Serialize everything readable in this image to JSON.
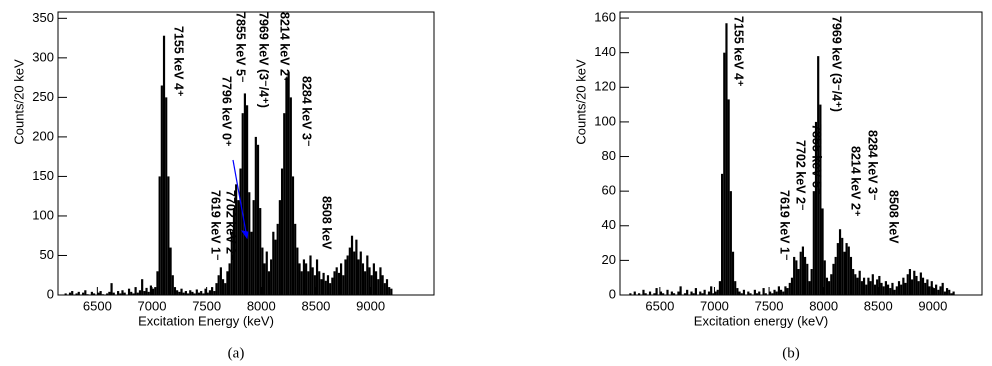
{
  "chart_data": [
    {
      "type": "histogram",
      "caption": "(a)",
      "xlabel": "Excitation Energy (keV)",
      "ylabel": "Counts/20 keV",
      "color": "#000000",
      "xlim": [
        6140,
        9580
      ],
      "ylim": [
        0,
        358
      ],
      "xticks": [
        6500,
        7000,
        7500,
        8000,
        8500,
        9000
      ],
      "yticks": [
        0,
        50,
        100,
        150,
        200,
        250,
        300,
        350
      ],
      "bins": [
        6200,
        6220,
        6240,
        6260,
        6280,
        6300,
        6320,
        6340,
        6360,
        6380,
        6400,
        6420,
        6440,
        6460,
        6480,
        6500,
        6520,
        6540,
        6560,
        6580,
        6600,
        6620,
        6640,
        6660,
        6680,
        6700,
        6720,
        6740,
        6760,
        6780,
        6800,
        6820,
        6840,
        6860,
        6880,
        6900,
        6920,
        6940,
        6960,
        6980,
        7000,
        7020,
        7040,
        7060,
        7080,
        7100,
        7120,
        7140,
        7160,
        7180,
        7200,
        7220,
        7240,
        7260,
        7280,
        7300,
        7320,
        7340,
        7360,
        7380,
        7400,
        7420,
        7440,
        7460,
        7480,
        7500,
        7520,
        7540,
        7560,
        7580,
        7600,
        7620,
        7640,
        7660,
        7680,
        7700,
        7720,
        7740,
        7760,
        7780,
        7800,
        7820,
        7840,
        7860,
        7880,
        7900,
        7920,
        7940,
        7960,
        7980,
        8000,
        8020,
        8040,
        8060,
        8080,
        8100,
        8120,
        8140,
        8160,
        8180,
        8200,
        8220,
        8240,
        8260,
        8280,
        8300,
        8320,
        8340,
        8360,
        8380,
        8400,
        8420,
        8440,
        8460,
        8480,
        8500,
        8520,
        8540,
        8560,
        8580,
        8600,
        8620,
        8640,
        8660,
        8680,
        8700,
        8720,
        8740,
        8760,
        8780,
        8800,
        8820,
        8840,
        8860,
        8880,
        8900,
        8920,
        8940,
        8960,
        8980,
        9000,
        9020,
        9040,
        9060,
        9080,
        9100,
        9120,
        9140,
        9160,
        9180,
        9200
      ],
      "values": [
        2,
        0,
        3,
        5,
        0,
        2,
        4,
        0,
        3,
        6,
        1,
        0,
        4,
        2,
        0,
        3,
        5,
        1,
        0,
        2,
        4,
        15,
        3,
        0,
        5,
        2,
        6,
        3,
        0,
        8,
        4,
        2,
        10,
        3,
        6,
        20,
        5,
        9,
        4,
        12,
        8,
        10,
        30,
        150,
        265,
        328,
        250,
        150,
        60,
        25,
        10,
        6,
        4,
        8,
        3,
        5,
        2,
        6,
        4,
        2,
        7,
        3,
        5,
        2,
        8,
        3,
        6,
        10,
        5,
        15,
        25,
        35,
        20,
        15,
        30,
        40,
        80,
        110,
        140,
        120,
        160,
        230,
        255,
        240,
        130,
        80,
        120,
        200,
        190,
        110,
        60,
        40,
        55,
        30,
        45,
        80,
        70,
        90,
        120,
        160,
        230,
        275,
        282,
        250,
        150,
        90,
        60,
        40,
        30,
        45,
        40,
        30,
        50,
        35,
        25,
        45,
        30,
        20,
        28,
        18,
        25,
        15,
        22,
        30,
        35,
        28,
        40,
        25,
        45,
        50,
        60,
        75,
        55,
        70,
        45,
        55,
        40,
        30,
        50,
        35,
        25,
        40,
        30,
        20,
        35,
        25,
        15,
        20,
        10,
        8
      ],
      "annotations": [
        {
          "text": "7155 keV 4⁺",
          "color": "#ff0000"
        },
        {
          "text": "7855 keV 5⁻",
          "color": "#0000ff"
        },
        {
          "text": "7796 keV 0⁺",
          "color": "#0000ff"
        },
        {
          "text": "7969 keV (3⁻/4⁺)",
          "color": "#ff0000"
        },
        {
          "text": "8214 keV 2⁺",
          "color": "#0000ff"
        },
        {
          "text": "8284 keV 3⁻",
          "color": "#0000ff"
        },
        {
          "text": "8508 keV",
          "color": "#0000ff"
        },
        {
          "text": "7702 keV 2⁻",
          "color": "#ff0000"
        },
        {
          "text": "7619 keV 1⁻",
          "color": "#0000ff"
        }
      ]
    },
    {
      "type": "histogram",
      "caption": "(b)",
      "xlabel": "Excitation energy (keV)",
      "ylabel": "Counts/20 keV",
      "color": "#000000",
      "xlim": [
        6135,
        9450
      ],
      "ylim": [
        0,
        163.5
      ],
      "xticks": [
        6500,
        7000,
        7500,
        8000,
        8500,
        9000
      ],
      "yticks": [
        0,
        20,
        40,
        60,
        80,
        100,
        120,
        140,
        160
      ],
      "bins": [
        6200,
        6220,
        6240,
        6260,
        6280,
        6300,
        6320,
        6340,
        6360,
        6380,
        6400,
        6420,
        6440,
        6460,
        6480,
        6500,
        6520,
        6540,
        6560,
        6580,
        6600,
        6620,
        6640,
        6660,
        6680,
        6700,
        6720,
        6740,
        6760,
        6780,
        6800,
        6820,
        6840,
        6860,
        6880,
        6900,
        6920,
        6940,
        6960,
        6980,
        7000,
        7020,
        7040,
        7060,
        7080,
        7100,
        7120,
        7140,
        7160,
        7180,
        7200,
        7220,
        7240,
        7260,
        7280,
        7300,
        7320,
        7340,
        7360,
        7380,
        7400,
        7420,
        7440,
        7460,
        7480,
        7500,
        7520,
        7540,
        7560,
        7580,
        7600,
        7620,
        7640,
        7660,
        7680,
        7700,
        7720,
        7740,
        7760,
        7780,
        7800,
        7820,
        7840,
        7860,
        7880,
        7900,
        7920,
        7940,
        7960,
        7980,
        8000,
        8020,
        8040,
        8060,
        8080,
        8100,
        8120,
        8140,
        8160,
        8180,
        8200,
        8220,
        8240,
        8260,
        8280,
        8300,
        8320,
        8340,
        8360,
        8380,
        8400,
        8420,
        8440,
        8460,
        8480,
        8500,
        8520,
        8540,
        8560,
        8580,
        8600,
        8620,
        8640,
        8660,
        8680,
        8700,
        8720,
        8740,
        8760,
        8780,
        8800,
        8820,
        8840,
        8860,
        8880,
        8900,
        8920,
        8940,
        8960,
        8980,
        9000,
        9020,
        9040,
        9060,
        9080,
        9100,
        9120,
        9140,
        9160,
        9180,
        9200
      ],
      "values": [
        0,
        1,
        0,
        2,
        0,
        1,
        0,
        3,
        1,
        0,
        2,
        0,
        1,
        4,
        0,
        2,
        1,
        0,
        3,
        0,
        2,
        1,
        0,
        2,
        5,
        0,
        1,
        3,
        0,
        2,
        1,
        4,
        0,
        2,
        1,
        3,
        0,
        2,
        5,
        1,
        2,
        3,
        8,
        70,
        140,
        157,
        113,
        60,
        25,
        8,
        4,
        2,
        1,
        3,
        0,
        2,
        1,
        0,
        3,
        1,
        2,
        0,
        4,
        1,
        0,
        2,
        1,
        3,
        2,
        5,
        3,
        2,
        5,
        4,
        7,
        10,
        22,
        20,
        15,
        25,
        28,
        22,
        18,
        8,
        15,
        60,
        100,
        138,
        110,
        50,
        20,
        10,
        8,
        12,
        18,
        22,
        30,
        38,
        33,
        25,
        30,
        28,
        22,
        15,
        12,
        10,
        14,
        8,
        10,
        6,
        10,
        8,
        12,
        6,
        9,
        11,
        7,
        5,
        8,
        6,
        4,
        7,
        3,
        5,
        8,
        6,
        10,
        7,
        12,
        15,
        9,
        14,
        11,
        8,
        13,
        10,
        7,
        9,
        5,
        8,
        4,
        6,
        3,
        5,
        7,
        2,
        4,
        3,
        1,
        2
      ],
      "annotations": [
        {
          "text": "7155 keV 4⁺",
          "color": "#ff0000"
        },
        {
          "text": "7969 keV (3⁻/4⁺)",
          "color": "#ff0000"
        },
        {
          "text": "7855 keV 5⁻",
          "color": "#0000ff"
        },
        {
          "text": "7702 keV 2⁻",
          "color": "#ff0000"
        },
        {
          "text": "7619 keV 1⁻",
          "color": "#0000ff"
        },
        {
          "text": "8214 keV 2⁺",
          "color": "#0000ff"
        },
        {
          "text": "8284 keV 3⁻",
          "color": "#0000ff"
        },
        {
          "text": "8508 keV",
          "color": "#0000ff"
        }
      ]
    }
  ]
}
